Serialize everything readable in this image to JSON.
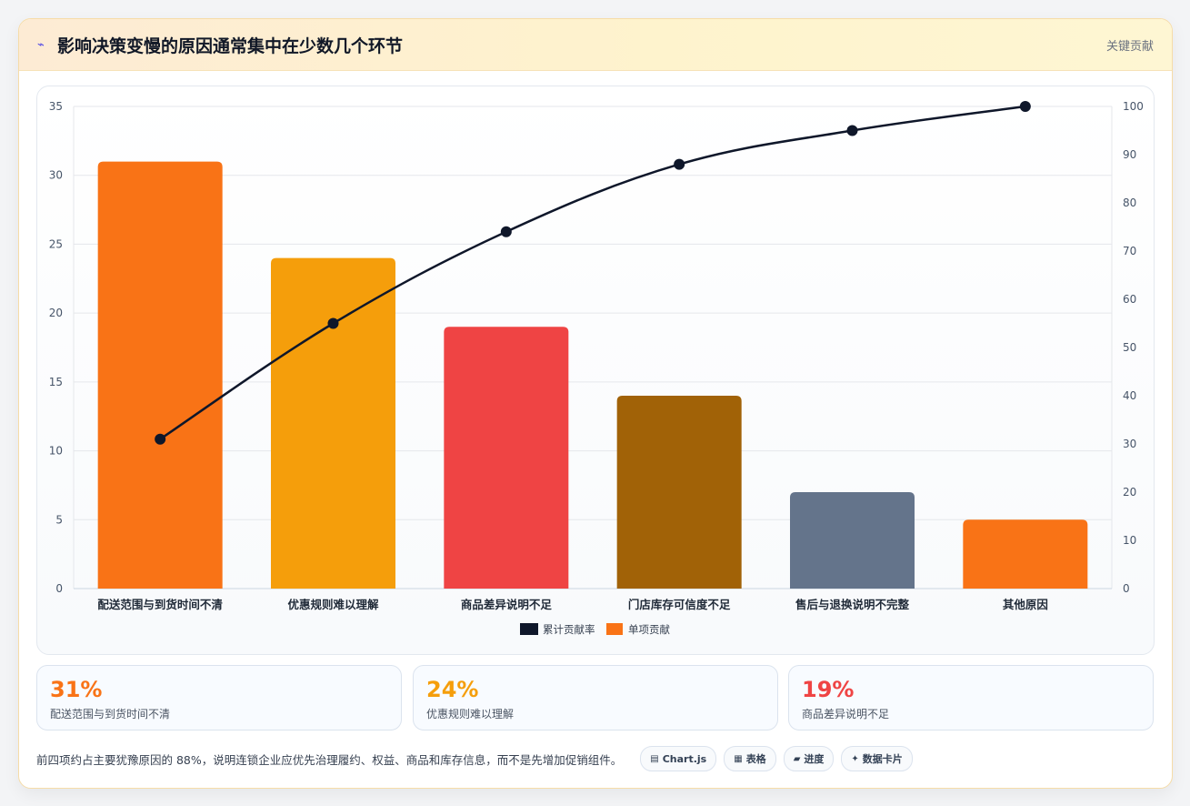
{
  "header": {
    "icon": "bolt-icon",
    "title": "影响决策变慢的原因通常集中在少数几个环节",
    "tag": "关键贡献"
  },
  "chart_data": {
    "type": "bar",
    "categories": [
      "配送范围与到货时间不清",
      "优惠规则难以理解",
      "商品差异说明不足",
      "门店库存可信度不足",
      "售后与退换说明不完整",
      "其他原因"
    ],
    "series": [
      {
        "name": "单项贡献",
        "type": "bar",
        "axis": "left",
        "values": [
          31,
          24,
          19,
          14,
          7,
          5
        ],
        "colors": [
          "#f97316",
          "#f59e0b",
          "#ef4444",
          "#a16207",
          "#64748b",
          "#f97316"
        ]
      },
      {
        "name": "累计贡献率",
        "type": "line",
        "axis": "right",
        "values": [
          31,
          55,
          74,
          88,
          95,
          100
        ],
        "color": "#0f172a"
      }
    ],
    "y_left": {
      "min": 0,
      "max": 35,
      "ticks": [
        0,
        5,
        10,
        15,
        20,
        25,
        30,
        35
      ]
    },
    "y_right": {
      "min": 0,
      "max": 100,
      "ticks": [
        0,
        10,
        20,
        30,
        40,
        50,
        60,
        70,
        80,
        90,
        100
      ]
    },
    "legend": {
      "position": "bottom",
      "items": [
        {
          "label": "累计贡献率",
          "color": "#0f172a"
        },
        {
          "label": "单项贡献",
          "color": "#f97316"
        }
      ]
    },
    "grid": true
  },
  "stats": [
    {
      "value": "31%",
      "label": "配送范围与到货时间不清",
      "color": "#f97316"
    },
    {
      "value": "24%",
      "label": "优惠规则难以理解",
      "color": "#f59e0b"
    },
    {
      "value": "19%",
      "label": "商品差异说明不足",
      "color": "#ef4444"
    }
  ],
  "footer": {
    "note": "前四项约占主要犹豫原因的 88%，说明连锁企业应优先治理履约、权益、商品和库存信息，而不是先增加促销组件。",
    "chips": [
      {
        "icon": "chart-icon",
        "glyph": "▤",
        "label": "Chart.js"
      },
      {
        "icon": "table-icon",
        "glyph": "▦",
        "label": "表格"
      },
      {
        "icon": "progress-icon",
        "glyph": "▰",
        "label": "进度"
      },
      {
        "icon": "sparkle-icon",
        "glyph": "✦",
        "label": "数据卡片"
      }
    ]
  }
}
